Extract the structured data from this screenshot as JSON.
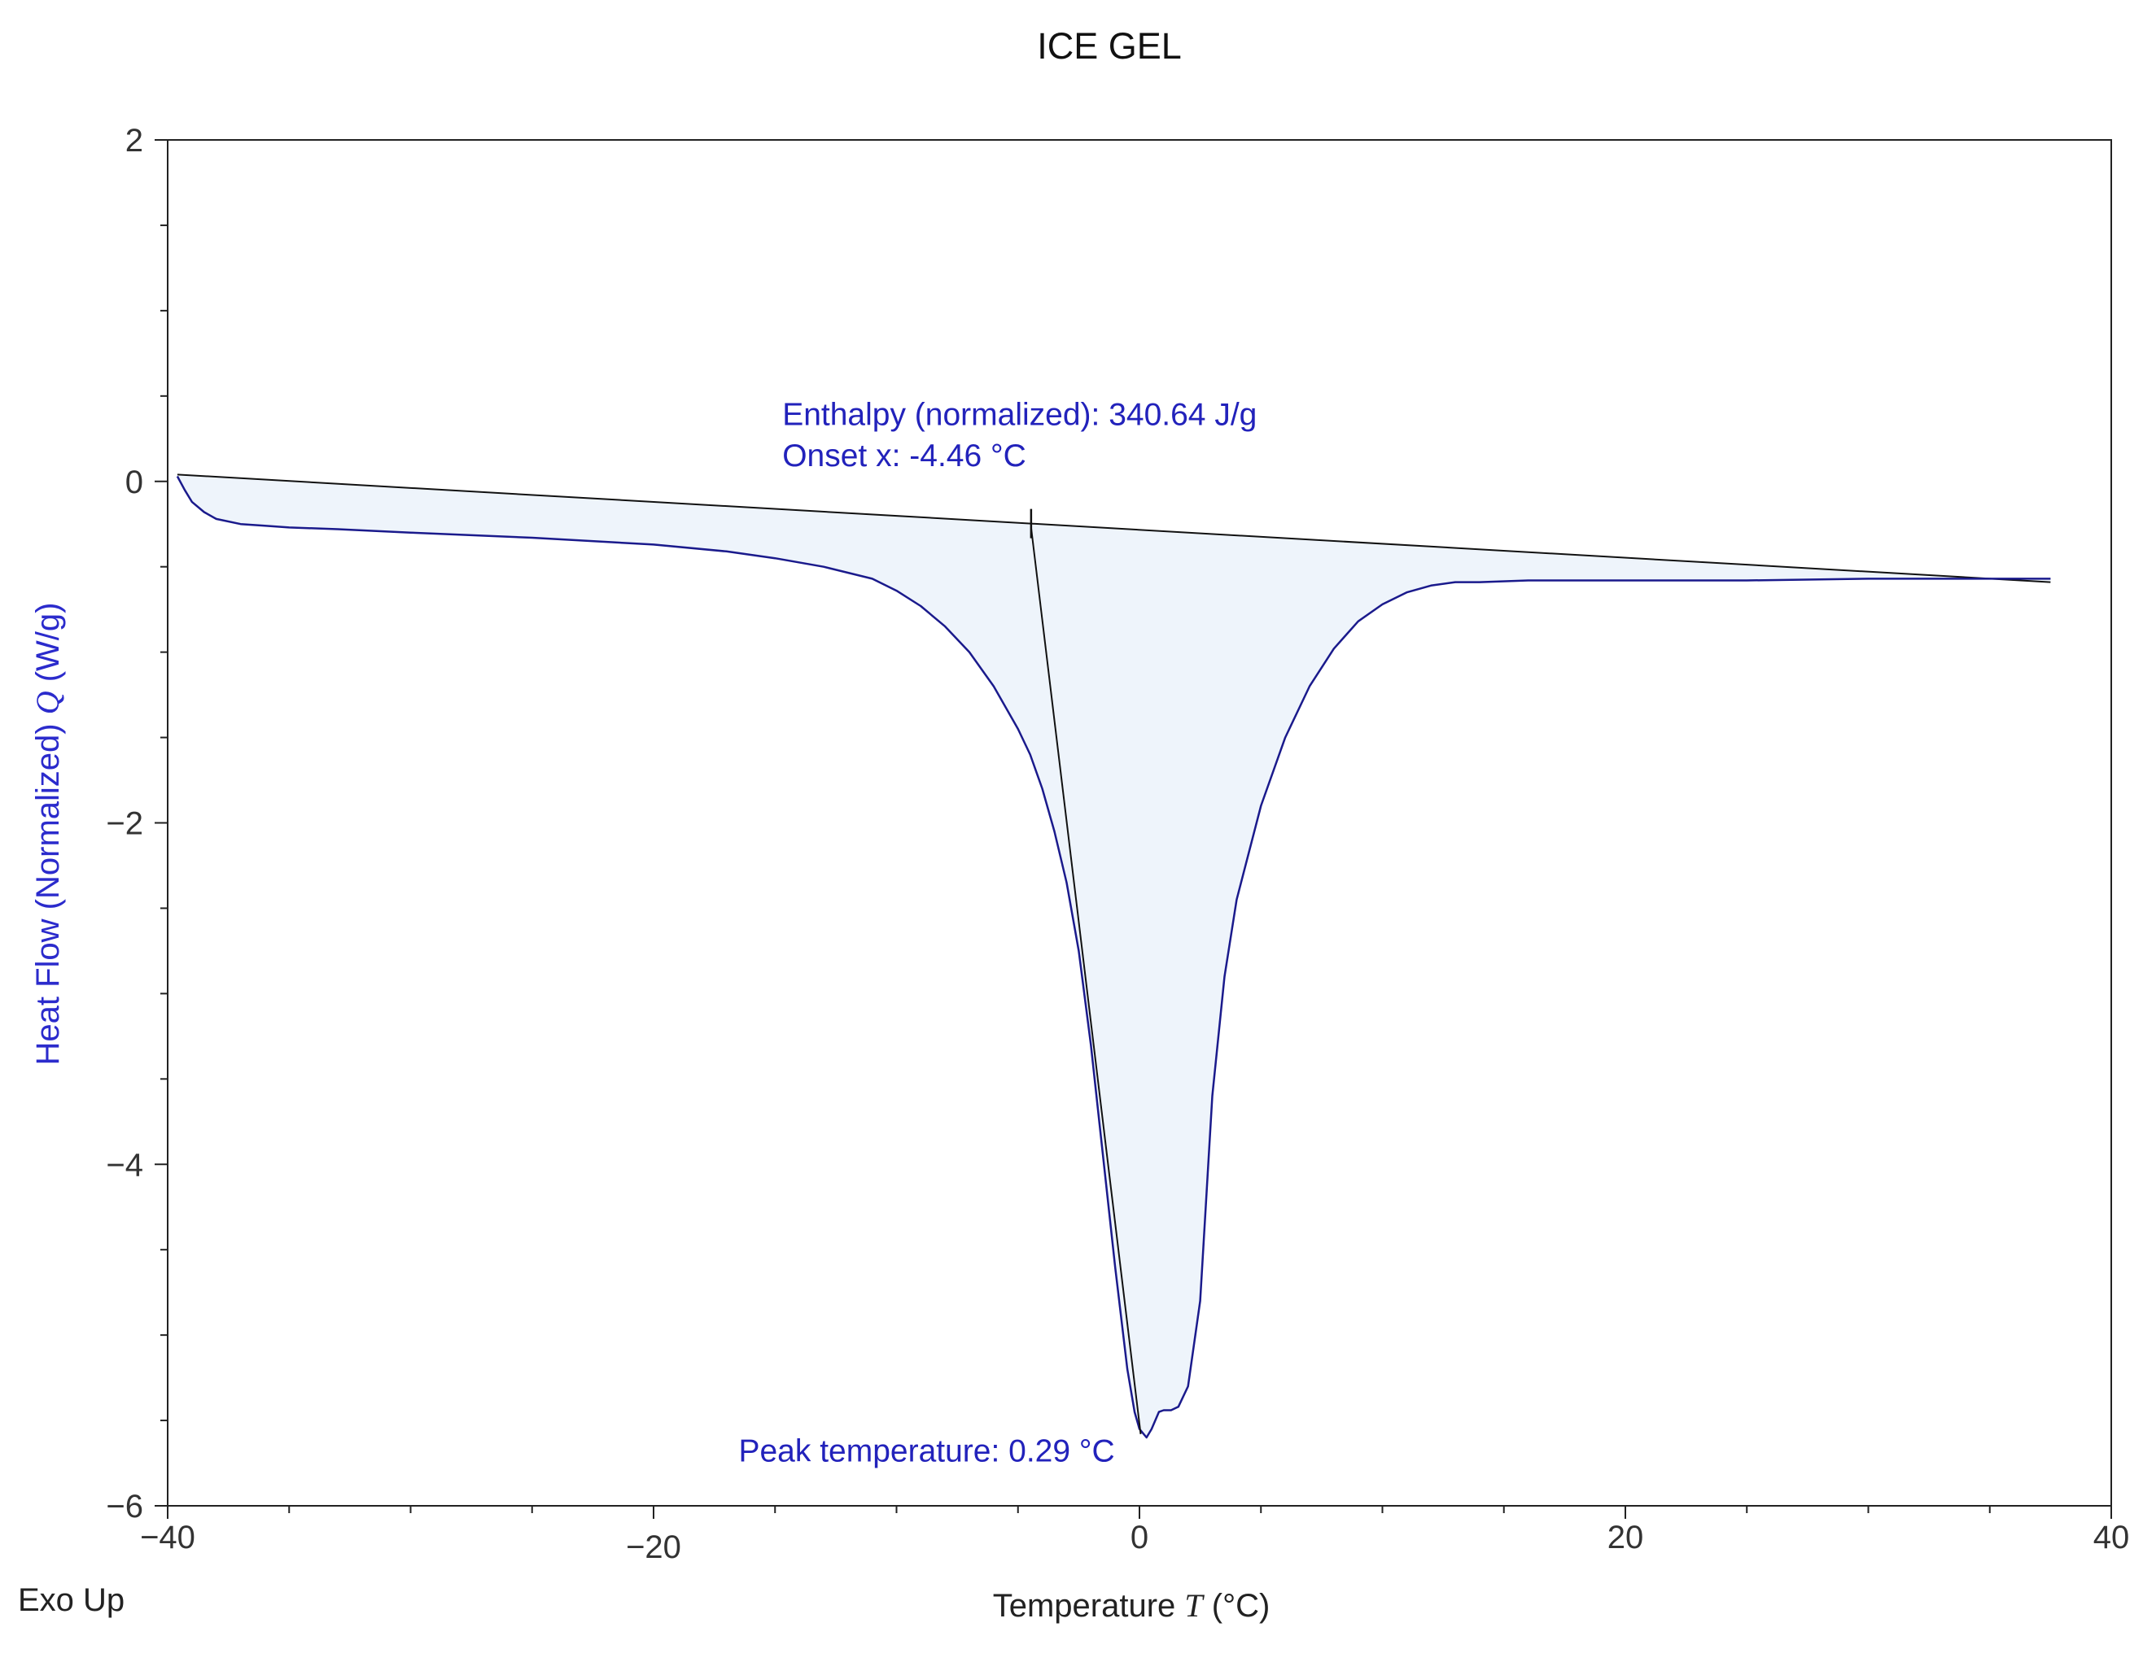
{
  "chart_data": {
    "type": "line",
    "title": "ICE GEL",
    "xlabel": "Temperature",
    "xlabel_symbol": "T",
    "xlabel_unit": "(°C)",
    "ylabel": "Heat Flow (Normalized)",
    "ylabel_symbol": "Q",
    "ylabel_unit": "(W/g)",
    "corner_note": "Exo Up",
    "xlim": [
      -40,
      40
    ],
    "ylim": [
      -6,
      2
    ],
    "xticks": [
      {
        "value": -40,
        "label": "−40"
      },
      {
        "value": -20,
        "label": "−20"
      },
      {
        "value": 0,
        "label": "0"
      },
      {
        "value": 20,
        "label": "20"
      },
      {
        "value": 40,
        "label": "40"
      }
    ],
    "yticks": [
      {
        "value": 2,
        "label": "2"
      },
      {
        "value": 0,
        "label": "0"
      },
      {
        "value": -2,
        "label": "−2"
      },
      {
        "value": -4,
        "label": "−4"
      },
      {
        "value": -6,
        "label": "−6"
      }
    ],
    "x_minor_step": 5,
    "y_minor_step": 0.5,
    "grid": false,
    "series": [
      {
        "color": "#1a1a8c",
        "fill": "#eef4fb",
        "x": [
          -39.6,
          -39.3,
          -39.0,
          -38.5,
          -38.0,
          -37.0,
          -36.0,
          -35.0,
          -33.0,
          -30.0,
          -25.0,
          -20.0,
          -17.0,
          -15.0,
          -13.0,
          -11.0,
          -10.0,
          -9.0,
          -8.0,
          -7.0,
          -6.0,
          -5.0,
          -4.5,
          -4.0,
          -3.5,
          -3.0,
          -2.5,
          -2.0,
          -1.5,
          -1.0,
          -0.5,
          -0.2,
          0.0,
          0.29,
          0.5,
          0.8,
          1.0,
          1.3,
          1.6,
          2.0,
          2.5,
          3.0,
          3.5,
          4.0,
          5.0,
          6.0,
          7.0,
          8.0,
          9.0,
          10.0,
          11.0,
          12.0,
          13.0,
          14.0,
          16.0,
          20.0,
          25.0,
          30.0,
          35.0,
          37.5
        ],
        "y": [
          0.03,
          -0.05,
          -0.12,
          -0.18,
          -0.22,
          -0.25,
          -0.26,
          -0.27,
          -0.28,
          -0.3,
          -0.33,
          -0.37,
          -0.41,
          -0.45,
          -0.5,
          -0.57,
          -0.64,
          -0.73,
          -0.85,
          -1.0,
          -1.2,
          -1.45,
          -1.6,
          -1.8,
          -2.05,
          -2.35,
          -2.75,
          -3.3,
          -3.95,
          -4.6,
          -5.2,
          -5.45,
          -5.55,
          -5.6,
          -5.55,
          -5.45,
          -5.44,
          -5.44,
          -5.42,
          -5.3,
          -4.8,
          -3.6,
          -2.9,
          -2.45,
          -1.9,
          -1.5,
          -1.2,
          -0.98,
          -0.82,
          -0.72,
          -0.65,
          -0.61,
          -0.59,
          -0.59,
          -0.58,
          -0.58,
          -0.58,
          -0.57,
          -0.57,
          -0.57
        ]
      }
    ],
    "baseline": {
      "x1": -39.6,
      "y1": 0.04,
      "x2": 37.5,
      "y2": -0.59,
      "color": "#111111"
    },
    "onset_line": {
      "x1": -4.46,
      "y1": -0.27,
      "x2": 0.05,
      "y2": -5.58,
      "color": "#111111"
    },
    "annotations": [
      {
        "id": "enthalpy",
        "text": "Enthalpy (normalized): 340.64 J/g",
        "x": -14.7,
        "y": 0.33,
        "color": "#2222bb"
      },
      {
        "id": "onset",
        "text": "Onset x: -4.46 °C",
        "x": -14.7,
        "y": 0.09,
        "color": "#2222bb"
      },
      {
        "id": "peak",
        "text": "Peak temperature: 0.29 °C",
        "x": -16.5,
        "y": -5.74,
        "color": "#2222bb"
      }
    ]
  }
}
